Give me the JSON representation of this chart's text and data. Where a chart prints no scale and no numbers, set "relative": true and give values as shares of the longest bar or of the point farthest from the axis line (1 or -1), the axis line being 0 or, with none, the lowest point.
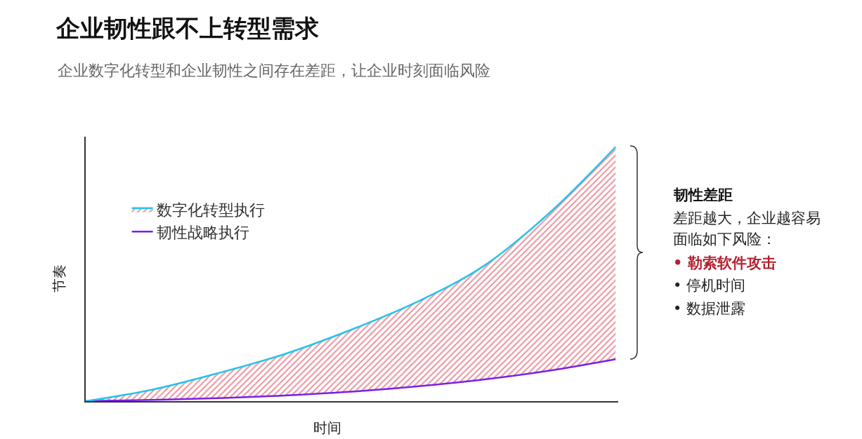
{
  "chart_data": {
    "type": "line",
    "title": "企业韧性跟不上转型需求",
    "subtitle": "企业数字化转型和企业韧性之间存在差距，让企业时刻面临风险",
    "xlabel": "时间",
    "ylabel": "节奏",
    "relative": true,
    "legend": "top left",
    "categories": [
      null,
      null,
      null,
      null,
      null,
      null,
      null,
      null,
      null
    ],
    "series": [
      {
        "name": "韧性战略执行",
        "color": "#7b1fe8",
        "values": [
          0,
          0.005,
          0.012,
          0.022,
          0.037,
          0.058,
          0.085,
          0.12,
          0.165
        ]
      },
      {
        "name": "数字化转型执行",
        "color": "#21c4ec",
        "type": "area",
        "values": [
          0,
          0.045,
          0.11,
          0.185,
          0.28,
          0.39,
          0.53,
          0.74,
          1.0
        ]
      }
    ],
    "annotations": [
      "韧性差距",
      "差距越大，企业越容易",
      "面临如下风险：",
      "• 勒索软件攻击",
      "• 停机时间",
      "• 数据泄露"
    ]
  }
}
